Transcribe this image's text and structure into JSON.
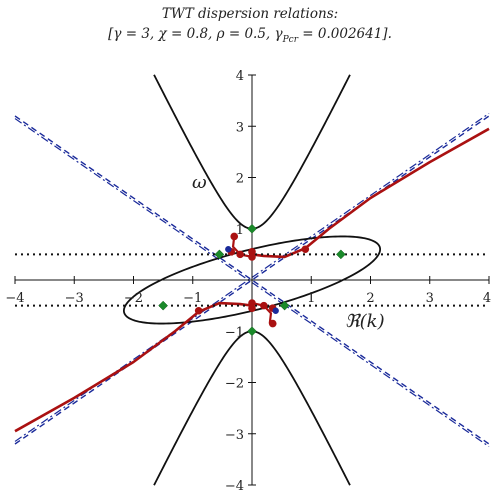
{
  "chart_data": {
    "type": "line",
    "title_line1": "TWT dispersion relations:",
    "title_line2": "[γ = 3, χ = 0.8, ρ = 0.5, γ",
    "title_sub": "Pcr",
    "title_line2_end": " = 0.002641].",
    "xlabel": "ℜ(k)",
    "ylabel": "ω",
    "xlim": [
      -4,
      4
    ],
    "ylim": [
      -4,
      4
    ],
    "xticks": [
      -4,
      -3,
      -2,
      -1,
      1,
      2,
      3,
      4
    ],
    "yticks": [
      -4,
      -3,
      -2,
      -1,
      1,
      2,
      3,
      4
    ],
    "grid": false,
    "colors": {
      "black": "#111111",
      "red": "#aa1111",
      "darkred": "#8b1a1a",
      "orange": "#f0a020",
      "blue": "#1a2a9a",
      "green": "#1a8a2a"
    },
    "horizontal_dotted": [
      0.5,
      -0.5
    ],
    "green_points": [
      [
        0,
        1
      ],
      [
        0,
        -1
      ],
      [
        -0.55,
        0.5
      ],
      [
        1.5,
        0.5
      ],
      [
        -1.5,
        -0.5
      ],
      [
        0.55,
        -0.5
      ]
    ],
    "red_points": [
      [
        -0.3,
        0.85
      ],
      [
        0,
        0.55
      ],
      [
        0,
        0.45
      ],
      [
        -0.35,
        0.55
      ],
      [
        -0.2,
        0.5
      ],
      [
        0.9,
        0.6
      ],
      [
        -0.9,
        -0.6
      ],
      [
        0,
        -0.45
      ],
      [
        0,
        -0.55
      ],
      [
        0.35,
        -0.55
      ],
      [
        0.35,
        -0.85
      ],
      [
        0.2,
        -0.5
      ]
    ],
    "blue_points": [
      [
        -0.4,
        0.6
      ],
      [
        0.4,
        -0.6
      ]
    ]
  }
}
